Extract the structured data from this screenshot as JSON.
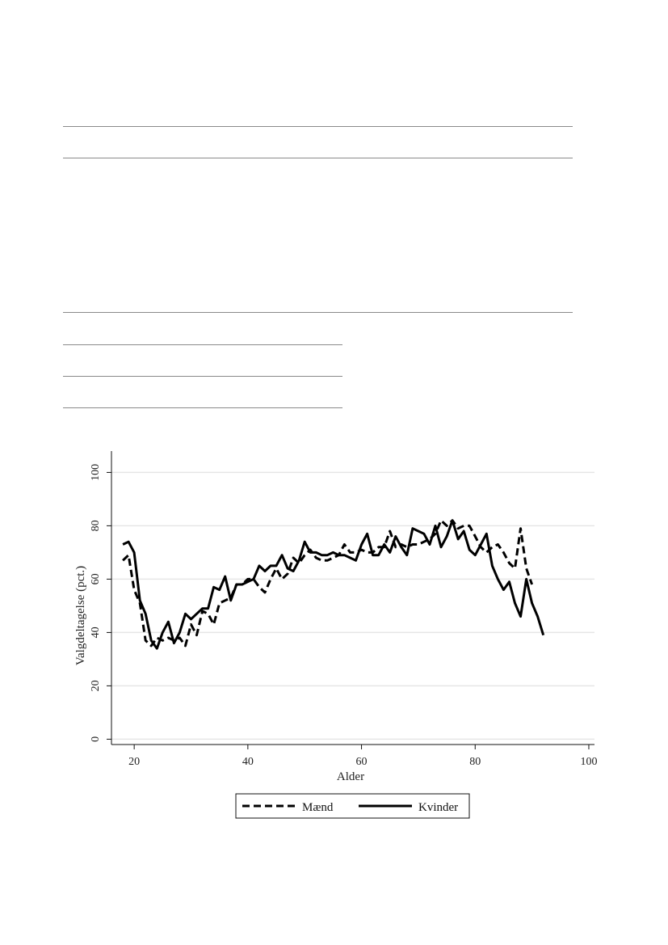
{
  "chart_data": {
    "type": "line",
    "xlabel": "Alder",
    "ylabel": "Valgdeltagelse (pct.)",
    "xlim": [
      16,
      101
    ],
    "ylim": [
      -2,
      108
    ],
    "xticks": [
      20,
      40,
      60,
      80,
      100
    ],
    "yticks": [
      0,
      20,
      40,
      60,
      80,
      100
    ],
    "grid": "horizontal",
    "legend_position": "bottom",
    "series": [
      {
        "name": "Mænd",
        "style": "dashed",
        "color": "#000000",
        "x": [
          18,
          19,
          20,
          21,
          22,
          23,
          24,
          25,
          26,
          27,
          28,
          29,
          30,
          31,
          32,
          33,
          34,
          35,
          36,
          37,
          38,
          39,
          40,
          41,
          42,
          43,
          44,
          45,
          46,
          47,
          48,
          49,
          50,
          51,
          52,
          53,
          54,
          55,
          56,
          57,
          58,
          59,
          60,
          61,
          62,
          63,
          64,
          65,
          66,
          67,
          68,
          69,
          70,
          71,
          72,
          73,
          74,
          75,
          76,
          77,
          78,
          79,
          80,
          81,
          82,
          83,
          84,
          85,
          86,
          87,
          88,
          89,
          90
        ],
        "y": [
          67,
          69,
          56,
          51,
          37,
          35,
          38,
          37,
          38,
          37,
          38,
          35,
          43,
          39,
          48,
          47,
          43,
          51,
          52,
          53,
          58,
          58,
          60,
          60,
          57,
          55,
          60,
          64,
          60,
          62,
          68,
          66,
          69,
          71,
          68,
          67,
          67,
          68,
          69,
          73,
          70,
          70,
          71,
          70,
          70,
          72,
          72,
          78,
          72,
          73,
          72,
          73,
          73,
          74,
          75,
          77,
          82,
          80,
          82,
          79,
          80,
          80,
          76,
          72,
          70,
          72,
          73,
          70,
          66,
          64,
          79,
          64,
          58
        ]
      },
      {
        "name": "Kvinder",
        "style": "solid",
        "color": "#000000",
        "x": [
          18,
          19,
          20,
          21,
          22,
          23,
          24,
          25,
          26,
          27,
          28,
          29,
          30,
          31,
          32,
          33,
          34,
          35,
          36,
          37,
          38,
          39,
          40,
          41,
          42,
          43,
          44,
          45,
          46,
          47,
          48,
          49,
          50,
          51,
          52,
          53,
          54,
          55,
          56,
          57,
          58,
          59,
          60,
          61,
          62,
          63,
          64,
          65,
          66,
          67,
          68,
          69,
          70,
          71,
          72,
          73,
          74,
          75,
          76,
          77,
          78,
          79,
          80,
          81,
          82,
          83,
          84,
          85,
          86,
          87,
          88,
          89,
          90,
          91,
          92
        ],
        "y": [
          73,
          74,
          70,
          52,
          47,
          37,
          34,
          40,
          44,
          36,
          40,
          47,
          45,
          47,
          49,
          49,
          57,
          56,
          61,
          52,
          58,
          58,
          59,
          60,
          65,
          63,
          65,
          65,
          69,
          64,
          63,
          67,
          74,
          70,
          70,
          69,
          69,
          70,
          69,
          69,
          68,
          67,
          73,
          77,
          69,
          69,
          73,
          70,
          76,
          72,
          69,
          79,
          78,
          77,
          73,
          80,
          72,
          76,
          82,
          75,
          78,
          71,
          69,
          73,
          77,
          65,
          60,
          56,
          59,
          51,
          46,
          60,
          51,
          46,
          39
        ]
      }
    ]
  },
  "page": {
    "rule_color": "#8a8a8a",
    "grid_color": "#e6e6e6",
    "axis_color": "#111111"
  }
}
